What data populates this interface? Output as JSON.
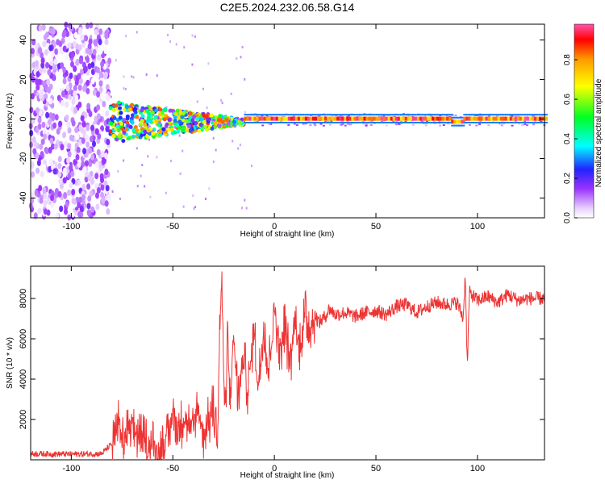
{
  "title": "C2E5.2024.232.06.58.G14",
  "chart_data": [
    {
      "type": "heatmap",
      "name": "spectrogram",
      "xlabel": "Height of straight line (km)",
      "ylabel": "Frequency (Hz)",
      "xlim": [
        -120,
        133
      ],
      "ylim": [
        -50,
        48
      ],
      "xticks": [
        "-100",
        "-50",
        "0",
        "50",
        "100"
      ],
      "xtick_values": [
        -100,
        -50,
        0,
        50,
        100
      ],
      "yticks": [
        "-40",
        "-20",
        "0",
        "20",
        "40"
      ],
      "ytick_values": [
        -40,
        -20,
        0,
        20,
        40
      ],
      "description_regions": [
        {
          "x": [
            -120,
            -81
          ],
          "freq": [
            -50,
            48
          ],
          "amplitude": [
            0.0,
            0.15
          ]
        },
        {
          "x": [
            -81,
            -15
          ],
          "freq": [
            -10,
            5
          ],
          "amplitude": [
            0.1,
            0.9
          ]
        },
        {
          "x": [
            -15,
            133
          ],
          "freq": [
            -1,
            1
          ],
          "amplitude": [
            0.7,
            1.0
          ]
        }
      ],
      "colorbar": {
        "label": "Normalized spectral amplitude",
        "range": [
          0.0,
          0.98
        ],
        "ticks": [
          "0.0",
          "0.2",
          "0.4",
          "0.6",
          "0.8"
        ],
        "tick_values": [
          0.0,
          0.2,
          0.4,
          0.6,
          0.8
        ]
      }
    },
    {
      "type": "line",
      "name": "snr",
      "xlabel": "Height of straight line (km)",
      "ylabel": "SNR (10 * v/v)",
      "xlim": [
        -120,
        133
      ],
      "ylim": [
        0,
        9600
      ],
      "xticks": [
        "-100",
        "-50",
        "0",
        "50",
        "100"
      ],
      "xtick_values": [
        -100,
        -50,
        0,
        50,
        100
      ],
      "yticks": [
        "2000",
        "4000",
        "6000",
        "8000"
      ],
      "ytick_values": [
        2000,
        4000,
        6000,
        8000
      ],
      "color": "#ee3333",
      "series": [
        {
          "name": "SNR",
          "x": [
            -120,
            -100,
            -85,
            -79,
            -77,
            -75,
            -70,
            -65,
            -60,
            -57,
            -52,
            -50,
            -47,
            -45,
            -40,
            -38,
            -35,
            -32,
            -30,
            -28,
            -27,
            -26,
            -25,
            -24,
            -23,
            -22,
            -20,
            -18,
            -15,
            -13,
            -10,
            -8,
            -5,
            -3,
            0,
            3,
            5,
            8,
            10,
            12,
            15,
            18,
            20,
            22,
            25,
            27,
            30,
            35,
            40,
            45,
            50,
            55,
            60,
            65,
            70,
            75,
            80,
            85,
            90,
            93,
            94,
            95,
            96,
            100,
            105,
            110,
            115,
            120,
            125,
            133
          ],
          "y": [
            300,
            280,
            300,
            900,
            2200,
            900,
            1600,
            900,
            700,
            300,
            1100,
            2500,
            1100,
            2200,
            1400,
            2700,
            1300,
            1900,
            2600,
            900,
            6100,
            8900,
            4600,
            1600,
            6400,
            2800,
            6200,
            3200,
            5100,
            3400,
            6500,
            3600,
            6800,
            4300,
            7600,
            5400,
            6700,
            4700,
            7000,
            5500,
            7100,
            6600,
            7200,
            6800,
            7100,
            7500,
            7200,
            7300,
            7100,
            7300,
            7400,
            7200,
            7600,
            7700,
            7300,
            7600,
            7800,
            7700,
            7800,
            7000,
            9300,
            4500,
            8300,
            7900,
            8100,
            7800,
            8200,
            7900,
            8000,
            8000
          ]
        }
      ]
    }
  ]
}
